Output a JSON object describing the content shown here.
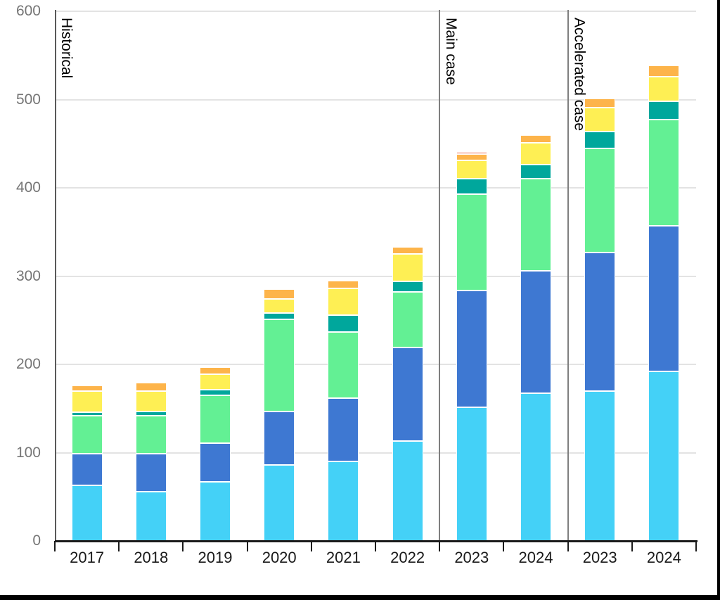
{
  "chart_data": {
    "type": "bar",
    "stacked": true,
    "title": "",
    "xlabel": "",
    "ylabel": "",
    "ylim": [
      0,
      600
    ],
    "yticks": [
      0,
      100,
      200,
      300,
      400,
      500,
      600
    ],
    "grid": "horizontal",
    "legend_position": "none",
    "sections": [
      {
        "label": "Historical",
        "categories": [
          "2017",
          "2018",
          "2019",
          "2020",
          "2021",
          "2022"
        ]
      },
      {
        "label": "Main case",
        "categories": [
          "2023",
          "2024"
        ]
      },
      {
        "label": "Accelerated case",
        "categories": [
          "2023",
          "2024"
        ]
      }
    ],
    "categories": [
      "2017",
      "2018",
      "2019",
      "2020",
      "2021",
      "2022",
      "2023",
      "2024",
      "2023",
      "2024"
    ],
    "series": [
      {
        "name": "light-blue-segment",
        "color": "#44D1F7",
        "values": [
          63,
          56,
          67,
          86,
          90,
          113,
          151,
          167,
          170,
          192
        ]
      },
      {
        "name": "blue-segment",
        "color": "#3E78D2",
        "values": [
          36,
          43,
          44,
          61,
          72,
          106,
          133,
          139,
          157,
          165
        ]
      },
      {
        "name": "green-segment",
        "color": "#63F094",
        "values": [
          43,
          43,
          54,
          104,
          75,
          63,
          109,
          104,
          118,
          120
        ]
      },
      {
        "name": "teal-segment",
        "color": "#00A79C",
        "values": [
          4,
          5,
          6,
          7,
          19,
          12,
          17,
          16,
          19,
          21
        ]
      },
      {
        "name": "yellow-segment",
        "color": "#FEEF54",
        "values": [
          24,
          23,
          18,
          16,
          30,
          31,
          21,
          25,
          27,
          28
        ]
      },
      {
        "name": "orange-segment",
        "color": "#FDB44A",
        "values": [
          6,
          9,
          8,
          11,
          9,
          8,
          7,
          9,
          10,
          13
        ]
      },
      {
        "name": "red-segment",
        "color": "#EE7053",
        "values": [
          0,
          0,
          0,
          0,
          0,
          0,
          3,
          0,
          0,
          0
        ]
      }
    ],
    "totals": [
      176,
      179,
      197,
      285,
      295,
      333,
      441,
      460,
      501,
      539
    ]
  },
  "colors": {
    "background": "#FFFFFF",
    "gridline": "#E3E3E3",
    "y_axis_line": "#595959",
    "x_axis_line": "#1A1A1A",
    "tick_label": "#757575",
    "category_label": "#1A1A1A",
    "section_divider": "#7F7F7F",
    "frame": "#000000"
  }
}
